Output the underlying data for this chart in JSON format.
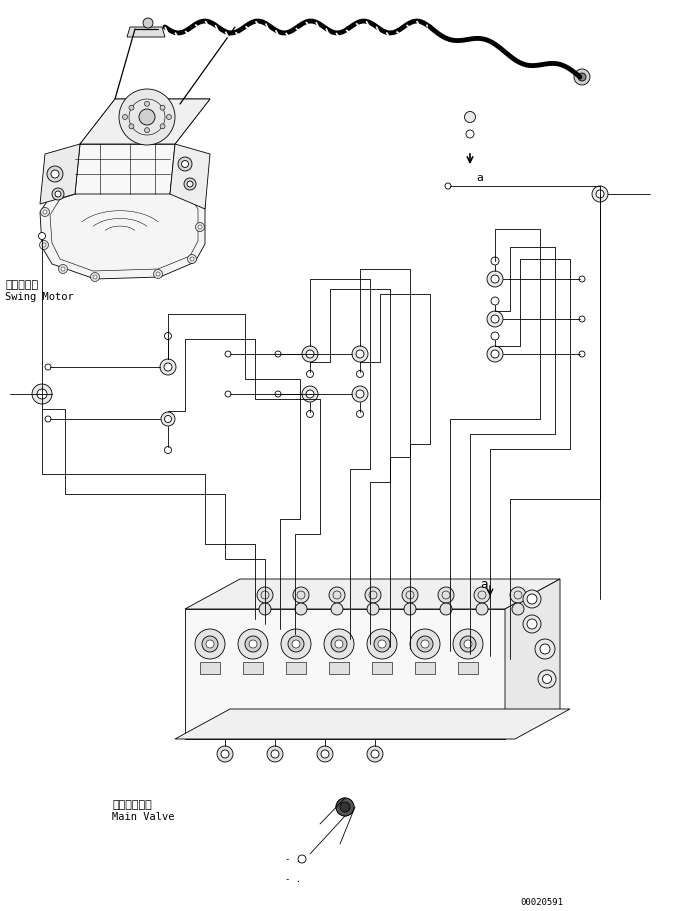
{
  "bg_color": "#ffffff",
  "line_color": "#000000",
  "fig_width": 6.85,
  "fig_height": 9.12,
  "dpi": 100,
  "watermark": "00020591",
  "swing_motor_label_jp": "旋回モータ",
  "swing_motor_label_en": "Swing Motor",
  "main_valve_label_jp": "メインバルブ",
  "main_valve_label_en": "Main Valve",
  "label_a": "a"
}
